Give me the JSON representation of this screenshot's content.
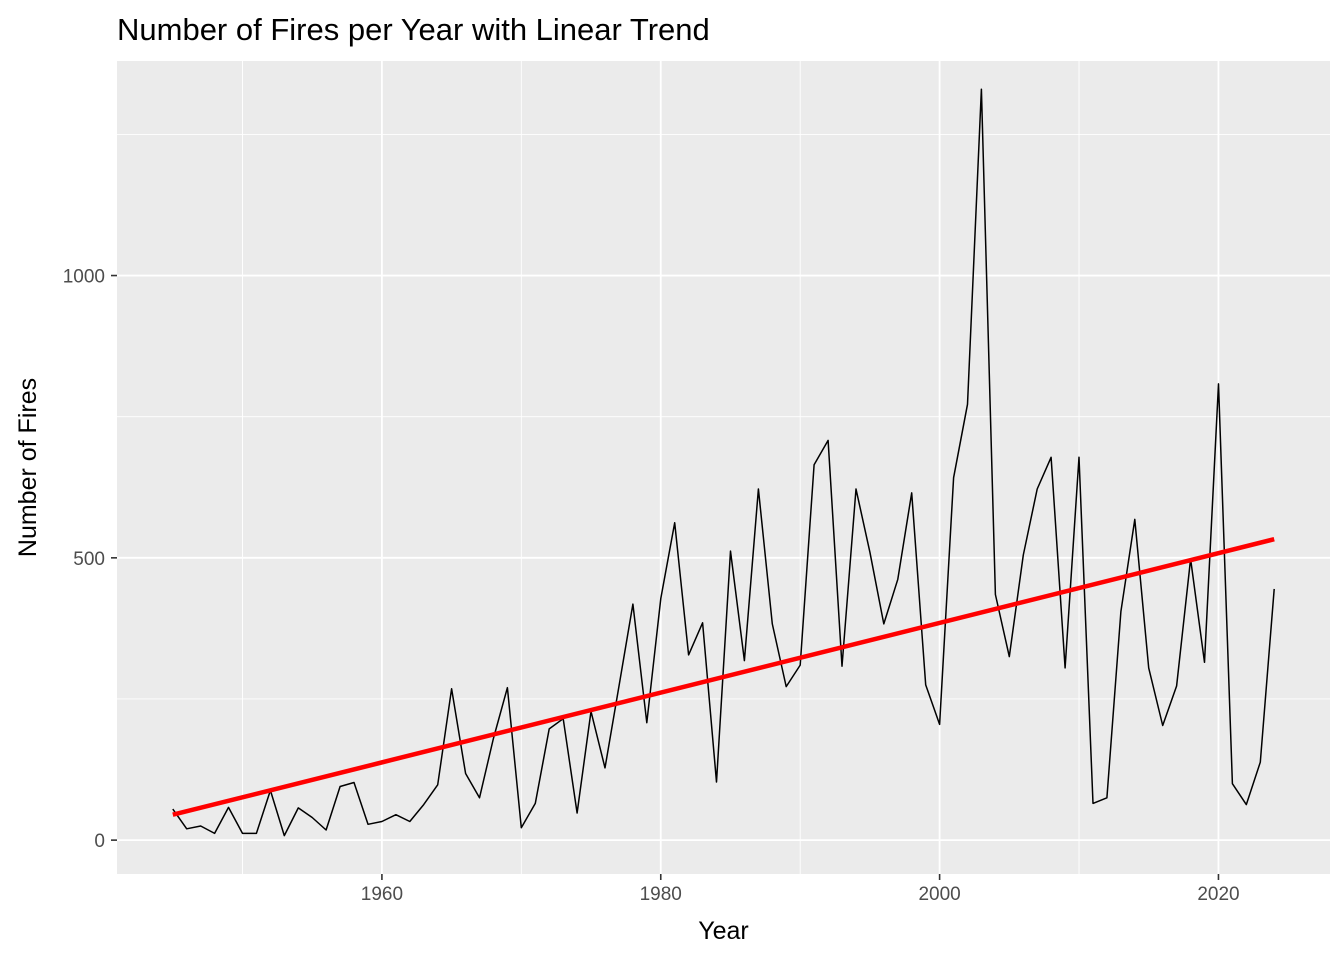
{
  "chart_data": {
    "type": "line",
    "title": "Number of Fires per Year with Linear Trend",
    "xlabel": "Year",
    "ylabel": "Number of Fires",
    "xlim": [
      1941,
      2028
    ],
    "ylim": [
      -60,
      1380
    ],
    "x_ticks": [
      1960,
      1980,
      2000,
      2020
    ],
    "y_ticks": [
      0,
      500,
      1000
    ],
    "x_minor_ticks": [
      1950,
      1970,
      1990,
      2010
    ],
    "y_minor_ticks": [
      250,
      750,
      1250
    ],
    "grid": true,
    "legend": "none",
    "background": "#ebebeb",
    "gridline_color": "#ffffff",
    "series": [
      {
        "color": "#000000",
        "x": [
          1945,
          1946,
          1947,
          1948,
          1949,
          1950,
          1951,
          1952,
          1953,
          1954,
          1955,
          1956,
          1957,
          1958,
          1959,
          1960,
          1961,
          1962,
          1963,
          1964,
          1965,
          1966,
          1967,
          1968,
          1969,
          1970,
          1971,
          1972,
          1973,
          1974,
          1975,
          1976,
          1977,
          1978,
          1979,
          1980,
          1981,
          1982,
          1983,
          1984,
          1985,
          1986,
          1987,
          1988,
          1989,
          1990,
          1991,
          1992,
          1993,
          1994,
          1995,
          1996,
          1997,
          1998,
          1999,
          2000,
          2001,
          2002,
          2003,
          2004,
          2005,
          2006,
          2007,
          2008,
          2009,
          2010,
          2011,
          2012,
          2013,
          2014,
          2015,
          2016,
          2017,
          2018,
          2019,
          2020,
          2021,
          2022,
          2023,
          2024
        ],
        "values": [
          55,
          20,
          25,
          12,
          58,
          12,
          12,
          88,
          8,
          57,
          40,
          18,
          95,
          102,
          28,
          33,
          45,
          33,
          63,
          98,
          268,
          118,
          75,
          180,
          270,
          22,
          65,
          197,
          215,
          48,
          228,
          128,
          272,
          418,
          208,
          428,
          562,
          328,
          385,
          103,
          512,
          318,
          622,
          383,
          272,
          310,
          665,
          708,
          308,
          622,
          510,
          383,
          462,
          615,
          275,
          205,
          642,
          772,
          1330,
          435,
          325,
          505,
          622,
          678,
          305,
          678,
          65,
          75,
          405,
          568,
          305,
          203,
          273,
          498,
          315,
          808,
          100,
          63,
          138,
          445
        ]
      },
      {
        "color": "#ff0000",
        "x": [
          1945,
          2024
        ],
        "values": [
          45,
          533
        ]
      }
    ]
  }
}
